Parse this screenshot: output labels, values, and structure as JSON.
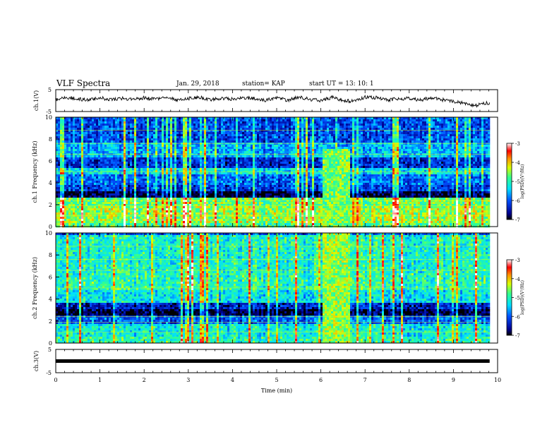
{
  "header": {
    "title": "VLF Spectra",
    "date": "Jan. 29, 2018",
    "station": "station= KAP",
    "start_ut": "start  UT =   13: 10: 1"
  },
  "chart_data": [
    {
      "type": "line",
      "name": "ch1-waveform",
      "ylabel": "ch.1(V)",
      "ylim": [
        -5,
        5
      ],
      "yticks": [
        "5",
        "-5"
      ],
      "x": [
        0,
        0.25,
        0.5,
        0.75,
        1.0,
        1.25,
        1.5,
        1.75,
        2.0,
        2.25,
        2.5,
        2.75,
        3.0,
        3.25,
        3.5,
        3.75,
        4.0,
        4.25,
        4.5,
        4.75,
        5.0,
        5.25,
        5.5,
        5.75,
        6.0,
        6.25,
        6.5,
        6.75,
        7.0,
        7.25,
        7.5,
        7.75,
        8.0,
        8.25,
        8.5,
        8.75,
        9.0,
        9.25,
        9.5,
        9.75,
        9.82
      ],
      "y": [
        0.3,
        1.5,
        0.8,
        0.2,
        1.2,
        0.5,
        1.0,
        0.3,
        1.3,
        0.6,
        1.2,
        0.4,
        0.9,
        1.5,
        0.2,
        1.2,
        0.6,
        1.4,
        1.0,
        0.1,
        1.3,
        0.2,
        1.6,
        0.6,
        0.0,
        1.5,
        0.2,
        -0.4,
        1.6,
        1.4,
        0.3,
        0.8,
        1.0,
        0.2,
        1.4,
        0.4,
        -0.5,
        -1.2,
        -2.2,
        -1.0,
        -1.2
      ]
    },
    {
      "type": "heatmap",
      "name": "ch1-spectrogram",
      "ylabel": "ch.1 Frequency (kHz)",
      "ylim": [
        0,
        10
      ],
      "yticks": [
        "0",
        "2",
        "4",
        "6",
        "8",
        "10"
      ],
      "colorbar": {
        "label": "log(PSD)(V²/Hz)",
        "range": [
          -7,
          -3
        ],
        "ticks": [
          "-3",
          "-4",
          "-5",
          "-6",
          "-7"
        ]
      },
      "bands": [
        {
          "from": 0,
          "to": 0.5,
          "level": -4.8
        },
        {
          "from": 0.5,
          "to": 2.0,
          "level": -4.5
        },
        {
          "from": 2.0,
          "to": 2.7,
          "level": -4.7
        },
        {
          "from": 2.7,
          "to": 3.3,
          "level": -6.9
        },
        {
          "from": 3.3,
          "to": 4.0,
          "level": -6.2
        },
        {
          "from": 4.0,
          "to": 4.8,
          "level": -5.9
        },
        {
          "from": 4.8,
          "to": 5.4,
          "level": -5.3
        },
        {
          "from": 5.4,
          "to": 6.5,
          "level": -6.3
        },
        {
          "from": 6.5,
          "to": 7.8,
          "level": -5.6
        },
        {
          "from": 7.8,
          "to": 10,
          "level": -6.1
        }
      ],
      "burst": {
        "t_start": 6.0,
        "t_end": 6.65,
        "f_max": 7.2,
        "level": -4.6
      }
    },
    {
      "type": "heatmap",
      "name": "ch2-spectrogram",
      "ylabel": "ch.2 Frequency (kHz)",
      "ylim": [
        0,
        10
      ],
      "yticks": [
        "0",
        "2",
        "4",
        "6",
        "8",
        "10"
      ],
      "colorbar": {
        "label": "log(PSD)(V²/Hz)",
        "range": [
          -7,
          -3
        ],
        "ticks": [
          "-3",
          "-4",
          "-5",
          "-6",
          "-7"
        ]
      },
      "bands": [
        {
          "from": 0,
          "to": 0.6,
          "level": -5.0
        },
        {
          "from": 0.6,
          "to": 1.8,
          "level": -5.2
        },
        {
          "from": 1.8,
          "to": 2.6,
          "level": -6.0
        },
        {
          "from": 2.6,
          "to": 3.2,
          "level": -6.9
        },
        {
          "from": 3.2,
          "to": 3.8,
          "level": -6.4
        },
        {
          "from": 3.8,
          "to": 5.0,
          "level": -5.3
        },
        {
          "from": 5.0,
          "to": 6.5,
          "level": -5.0
        },
        {
          "from": 6.5,
          "to": 10,
          "level": -5.1
        }
      ],
      "burst": {
        "t_start": 6.0,
        "t_end": 6.65,
        "f_max": 10,
        "level": -4.5
      }
    },
    {
      "type": "line",
      "name": "ch3-waveform",
      "ylabel": "ch.3(V)",
      "ylim": [
        -5,
        5
      ],
      "yticks": [
        "5",
        "-5"
      ],
      "x": [
        0,
        9.82
      ],
      "y": [
        0,
        0
      ]
    }
  ],
  "xaxis": {
    "label": "Time  (min)",
    "range": [
      0,
      10
    ],
    "ticks": [
      "0",
      "1",
      "2",
      "3",
      "4",
      "5",
      "6",
      "7",
      "8",
      "9",
      "10"
    ]
  }
}
